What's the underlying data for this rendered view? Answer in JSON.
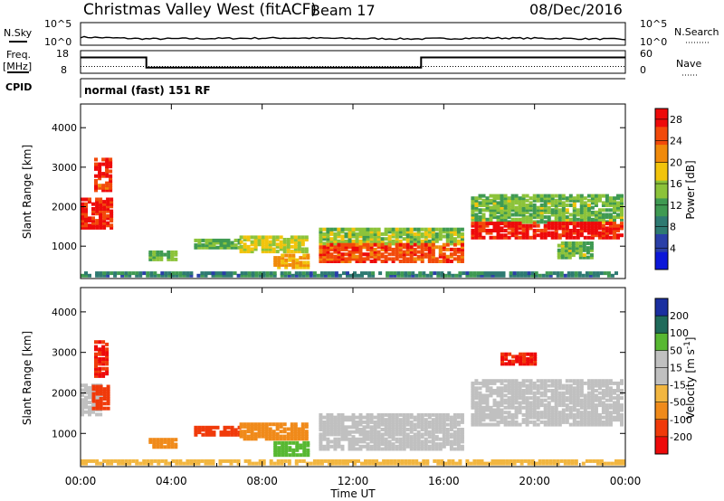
{
  "header": {
    "station": "Christmas Valley West (fitACF)",
    "beam": "Beam 17",
    "date": "08/Dec/2016"
  },
  "top_labels": {
    "nsky": "N.Sky",
    "nsearch": "N.Search",
    "freq_line1": "Freq.",
    "freq_line2": "[MHz]",
    "nave": "Nave",
    "cpid": "CPID",
    "mode": "normal (fast) 151 RF"
  },
  "axes": {
    "slant_range_label": "Slant Range [km]",
    "time_label": "Time UT",
    "power_label": "Power [dB]",
    "velocity_label": "Velocity [m s",
    "velocity_superscript": "-1",
    "velocity_label_close": "]"
  },
  "colors": {
    "power_scale": [
      "#0b17d9",
      "#2a3fa8",
      "#2e7a72",
      "#3f9a52",
      "#8cc33a",
      "#f2c40c",
      "#f08a0b",
      "#f24a0a",
      "#ee0a0a"
    ],
    "velocity_scale": [
      "#ee0a0a",
      "#f03a0a",
      "#f08a1a",
      "#f2b640",
      "#c0c0c0",
      "#c0c0c0",
      "#58b832",
      "#1f6a5a",
      "#1a2fa0"
    ],
    "ground_scatter": "#c0c0c0"
  },
  "chart_data": [
    {
      "type": "line",
      "title": "N.Sky / N.Search",
      "y_ticks_left": [
        "10^5",
        "10^0"
      ],
      "y_ticks_right": [
        "10^5",
        "10^0"
      ],
      "x": [
        0,
        3,
        6,
        9,
        12,
        15,
        18,
        21,
        24
      ],
      "series": [
        {
          "name": "N.Sky",
          "values": [
            1.8,
            1.4,
            1.5,
            1.6,
            1.5,
            1.4,
            1.6,
            1.5,
            1.3
          ]
        }
      ],
      "ylim": [
        0,
        5
      ]
    },
    {
      "type": "line",
      "title": "Freq. [MHz] / Nave",
      "y_ticks_left": [
        "18",
        "8"
      ],
      "y_ticks_right": [
        "60",
        "0"
      ],
      "segments": [
        {
          "start": 0.0,
          "end": 2.9,
          "freq": 15.0
        },
        {
          "start": 2.9,
          "end": 15.0,
          "freq": 10.5
        },
        {
          "start": 15.0,
          "end": 24.0,
          "freq": 15.0
        }
      ],
      "nave": 18,
      "ylim": [
        8,
        18
      ]
    },
    {
      "type": "heatmap",
      "title": "Power [dB]",
      "xlabel": "",
      "ylabel": "Slant Range [km]",
      "x_ticks": [
        "00:00",
        "04:00",
        "08:00",
        "12:00",
        "16:00",
        "20:00",
        "00:00"
      ],
      "xlim": [
        0,
        24
      ],
      "y_ticks": [
        1000,
        2000,
        3000,
        4000
      ],
      "ylim": [
        180,
        4600
      ],
      "colorbar_ticks": [
        4,
        8,
        12,
        16,
        20,
        24,
        28
      ],
      "colorbar_range": [
        0,
        30
      ],
      "regions": [
        {
          "t0": 0.0,
          "t1": 1.4,
          "r0": 1450,
          "r1": 2200,
          "value": 27
        },
        {
          "t0": 0.6,
          "t1": 1.3,
          "r0": 2400,
          "r1": 3200,
          "value": 26
        },
        {
          "t0": 3.0,
          "t1": 4.2,
          "r0": 650,
          "r1": 850,
          "value": 14
        },
        {
          "t0": 5.0,
          "t1": 7.0,
          "r0": 950,
          "r1": 1150,
          "value": 13
        },
        {
          "t0": 7.0,
          "t1": 10.0,
          "r0": 850,
          "r1": 1250,
          "value": 17
        },
        {
          "t0": 8.5,
          "t1": 10.0,
          "r0": 450,
          "r1": 800,
          "value": 20
        },
        {
          "t0": 10.5,
          "t1": 16.8,
          "r0": 1050,
          "r1": 1450,
          "value": 15
        },
        {
          "t0": 10.5,
          "t1": 16.8,
          "r0": 600,
          "r1": 1050,
          "value": 25
        },
        {
          "t0": 17.2,
          "t1": 24.0,
          "r0": 1600,
          "r1": 2300,
          "value": 14
        },
        {
          "t0": 17.2,
          "t1": 24.0,
          "r0": 1200,
          "r1": 1600,
          "value": 28
        },
        {
          "t0": 21.0,
          "t1": 22.5,
          "r0": 700,
          "r1": 1100,
          "value": 14
        },
        {
          "t0": 0.0,
          "t1": 24.0,
          "r0": 180,
          "r1": 330,
          "value": 9
        }
      ]
    },
    {
      "type": "heatmap",
      "title": "Velocity [m s-1]",
      "xlabel": "Time UT",
      "ylabel": "Slant Range [km]",
      "x_ticks": [
        "00:00",
        "04:00",
        "08:00",
        "12:00",
        "16:00",
        "20:00",
        "00:00"
      ],
      "xlim": [
        0,
        24
      ],
      "y_ticks": [
        1000,
        2000,
        3000,
        4000
      ],
      "ylim": [
        180,
        4600
      ],
      "colorbar_ticks": [
        -200,
        -100,
        -50,
        -15,
        15,
        50,
        100,
        200
      ],
      "colorbar_range": [
        -250,
        250
      ],
      "regions": [
        {
          "t0": 0.0,
          "t1": 0.9,
          "r0": 1450,
          "r1": 2200,
          "value": 0
        },
        {
          "t0": 0.5,
          "t1": 1.3,
          "r0": 1600,
          "r1": 2200,
          "value": -180
        },
        {
          "t0": 0.6,
          "t1": 1.2,
          "r0": 2400,
          "r1": 3300,
          "value": -200
        },
        {
          "t0": 3.0,
          "t1": 4.2,
          "r0": 650,
          "r1": 850,
          "value": -60
        },
        {
          "t0": 5.0,
          "t1": 7.0,
          "r0": 950,
          "r1": 1150,
          "value": -120
        },
        {
          "t0": 7.0,
          "t1": 10.0,
          "r0": 850,
          "r1": 1250,
          "value": -70
        },
        {
          "t0": 8.5,
          "t1": 10.0,
          "r0": 450,
          "r1": 800,
          "value": 60
        },
        {
          "t0": 10.5,
          "t1": 16.8,
          "r0": 600,
          "r1": 1450,
          "value": 0
        },
        {
          "t0": 17.2,
          "t1": 24.0,
          "r0": 1200,
          "r1": 2300,
          "value": 0
        },
        {
          "t0": 18.5,
          "t1": 20.0,
          "r0": 2700,
          "r1": 3000,
          "value": -200
        },
        {
          "t0": 0.0,
          "t1": 24.0,
          "r0": 180,
          "r1": 330,
          "value": -40
        }
      ]
    }
  ]
}
